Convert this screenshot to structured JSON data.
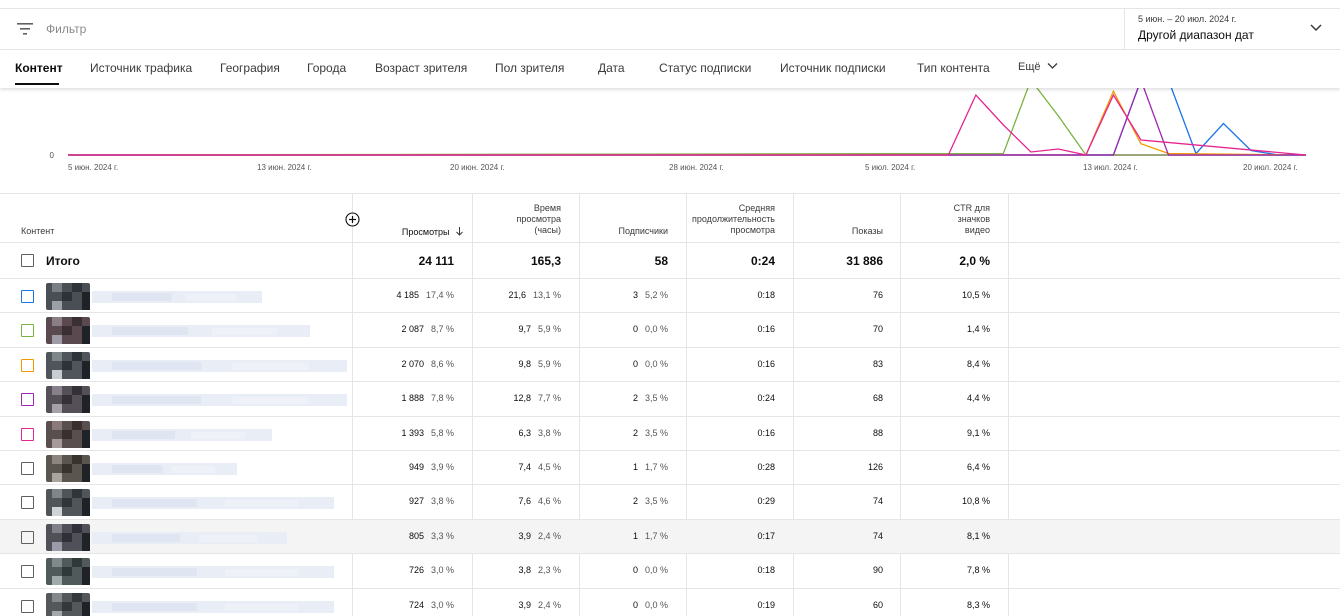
{
  "filter": {
    "label": "Фильтр"
  },
  "date_range": {
    "period": "5 июн. – 20 июл. 2024 г.",
    "label": "Другой диапазон дат"
  },
  "tabs": [
    {
      "label": "Контент"
    },
    {
      "label": "Источник трафика"
    },
    {
      "label": "География"
    },
    {
      "label": "Города"
    },
    {
      "label": "Возраст зрителя"
    },
    {
      "label": "Пол зрителя"
    },
    {
      "label": "Дата"
    },
    {
      "label": "Статус подписки"
    },
    {
      "label": "Источник подписки"
    },
    {
      "label": "Тип контента"
    },
    {
      "label": "Ещё"
    }
  ],
  "chart_data": {
    "type": "line",
    "y_tick": "0",
    "x_ticks": [
      "5 июн. 2024 г.",
      "13 июн. 2024 г.",
      "20 июн. 2024 г.",
      "28 июн. 2024 г.",
      "5 июл. 2024 г.",
      "13 июл. 2024 г.",
      "20 июл. 2024 г."
    ],
    "series": [
      {
        "color": "#1a73e8",
        "points": [
          [
            "2024-06-05",
            0
          ],
          [
            "2024-07-13",
            0
          ],
          [
            "2024-07-14",
            100
          ],
          [
            "2024-07-15",
            100
          ],
          [
            "2024-07-16",
            2
          ],
          [
            "2024-07-17",
            42
          ],
          [
            "2024-07-18",
            6
          ],
          [
            "2024-07-19",
            0
          ],
          [
            "2024-07-20",
            0
          ]
        ]
      },
      {
        "color": "#7cb342",
        "points": [
          [
            "2024-06-05",
            0
          ],
          [
            "2024-07-09",
            2
          ],
          [
            "2024-07-10",
            100
          ],
          [
            "2024-07-11",
            52
          ],
          [
            "2024-07-12",
            0
          ],
          [
            "2024-07-20",
            0
          ]
        ]
      },
      {
        "color": "#f29900",
        "points": [
          [
            "2024-06-05",
            0
          ],
          [
            "2024-07-12",
            0
          ],
          [
            "2024-07-13",
            85
          ],
          [
            "2024-07-14",
            15
          ],
          [
            "2024-07-15",
            2
          ],
          [
            "2024-07-20",
            0
          ]
        ]
      },
      {
        "color": "#9c27b0",
        "points": [
          [
            "2024-06-05",
            0
          ],
          [
            "2024-07-13",
            0
          ],
          [
            "2024-07-14",
            100
          ],
          [
            "2024-07-15",
            0
          ],
          [
            "2024-07-20",
            0
          ]
        ]
      },
      {
        "color": "#e52592",
        "points": [
          [
            "2024-06-05",
            0
          ],
          [
            "2024-07-07",
            0
          ],
          [
            "2024-07-08",
            80
          ],
          [
            "2024-07-09",
            40
          ],
          [
            "2024-07-10",
            4
          ],
          [
            "2024-07-11",
            8
          ],
          [
            "2024-07-12",
            0
          ],
          [
            "2024-07-13",
            80
          ],
          [
            "2024-07-14",
            20
          ],
          [
            "2024-07-20",
            0
          ]
        ]
      }
    ]
  },
  "table": {
    "columns": {
      "content": "Контент",
      "views": "Просмотры",
      "watch_time": [
        "Время",
        "просмотра",
        "(часы)"
      ],
      "subscribers": "Подписчики",
      "avg_duration": [
        "Средняя",
        "продолжительность",
        "просмотра"
      ],
      "impressions": "Показы",
      "ctr": [
        "CTR для",
        "значков",
        "видео"
      ]
    },
    "total": {
      "label": "Итого",
      "views": "24 111",
      "watch_time": "165,3",
      "subscribers": "58",
      "avg_duration": "0:24",
      "impressions": "31 886",
      "ctr": "2,0 %"
    },
    "rows": [
      {
        "color": "#1a73e8",
        "views": "4 185",
        "views_pct": "17,4 %",
        "watch": "21,6",
        "watch_pct": "13,1 %",
        "subs": "3",
        "subs_pct": "5,2 %",
        "avg": "0:18",
        "impr": "76",
        "ctr": "10,5 %"
      },
      {
        "color": "#7cb342",
        "views": "2 087",
        "views_pct": "8,7 %",
        "watch": "9,7",
        "watch_pct": "5,9 %",
        "subs": "0",
        "subs_pct": "0,0 %",
        "avg": "0:16",
        "impr": "70",
        "ctr": "1,4 %"
      },
      {
        "color": "#f29900",
        "views": "2 070",
        "views_pct": "8,6 %",
        "watch": "9,8",
        "watch_pct": "5,9 %",
        "subs": "0",
        "subs_pct": "0,0 %",
        "avg": "0:16",
        "impr": "83",
        "ctr": "8,4 %"
      },
      {
        "color": "#9c27b0",
        "views": "1 888",
        "views_pct": "7,8 %",
        "watch": "12,8",
        "watch_pct": "7,7 %",
        "subs": "2",
        "subs_pct": "3,5 %",
        "avg": "0:24",
        "impr": "68",
        "ctr": "4,4 %"
      },
      {
        "color": "#e52592",
        "views": "1 393",
        "views_pct": "5,8 %",
        "watch": "6,3",
        "watch_pct": "3,8 %",
        "subs": "2",
        "subs_pct": "3,5 %",
        "avg": "0:16",
        "impr": "88",
        "ctr": "9,1 %"
      },
      {
        "color": "#606060",
        "views": "949",
        "views_pct": "3,9 %",
        "watch": "7,4",
        "watch_pct": "4,5 %",
        "subs": "1",
        "subs_pct": "1,7 %",
        "avg": "0:28",
        "impr": "126",
        "ctr": "6,4 %"
      },
      {
        "color": "#606060",
        "views": "927",
        "views_pct": "3,8 %",
        "watch": "7,6",
        "watch_pct": "4,6 %",
        "subs": "2",
        "subs_pct": "3,5 %",
        "avg": "0:29",
        "impr": "74",
        "ctr": "10,8 %"
      },
      {
        "color": "#606060",
        "views": "805",
        "views_pct": "3,3 %",
        "watch": "3,9",
        "watch_pct": "2,4 %",
        "subs": "1",
        "subs_pct": "1,7 %",
        "avg": "0:17",
        "impr": "74",
        "ctr": "8,1 %"
      },
      {
        "color": "#606060",
        "views": "726",
        "views_pct": "3,0 %",
        "watch": "3,8",
        "watch_pct": "2,3 %",
        "subs": "0",
        "subs_pct": "0,0 %",
        "avg": "0:18",
        "impr": "90",
        "ctr": "7,8 %"
      },
      {
        "color": "#606060",
        "views": "724",
        "views_pct": "3,0 %",
        "watch": "3,9",
        "watch_pct": "2,4 %",
        "subs": "0",
        "subs_pct": "0,0 %",
        "avg": "0:19",
        "impr": "60",
        "ctr": "8,3 %"
      }
    ]
  }
}
